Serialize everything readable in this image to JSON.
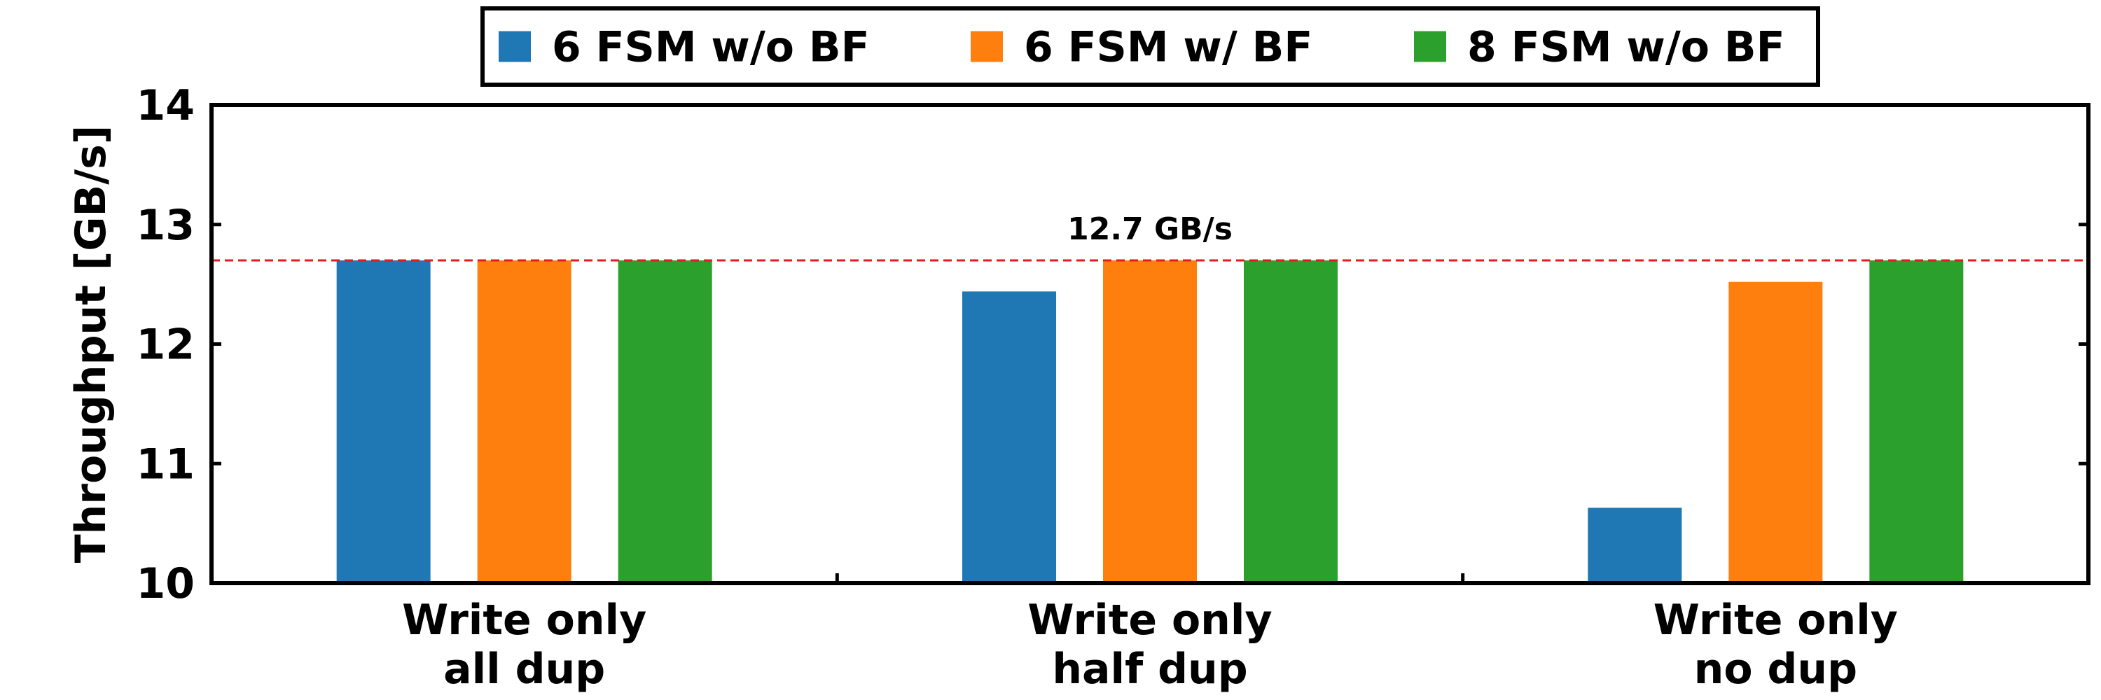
{
  "chart_data": {
    "type": "bar",
    "categories": [
      [
        "Write only",
        "all dup"
      ],
      [
        "Write only",
        "half dup"
      ],
      [
        "Write only",
        "no dup"
      ]
    ],
    "series": [
      {
        "name": "6 FSM w/o BF",
        "color": "#1f77b4",
        "values": [
          12.7,
          12.44,
          10.63
        ]
      },
      {
        "name": "6 FSM w/ BF",
        "color": "#ff7f0e",
        "values": [
          12.7,
          12.7,
          12.52
        ]
      },
      {
        "name": "8 FSM w/o BF",
        "color": "#2ca02c",
        "values": [
          12.7,
          12.7,
          12.7
        ]
      }
    ],
    "title": "",
    "xlabel": "",
    "ylabel": "Throughput [GB/s]",
    "ylim": [
      10,
      14
    ],
    "yticks": [
      10,
      11,
      12,
      13,
      14
    ],
    "grid": false,
    "legend_position": "top-center",
    "reference_line": {
      "value": 12.7,
      "label": "12.7 GB/s",
      "color": "#e41a1c",
      "style": "dashed"
    }
  }
}
